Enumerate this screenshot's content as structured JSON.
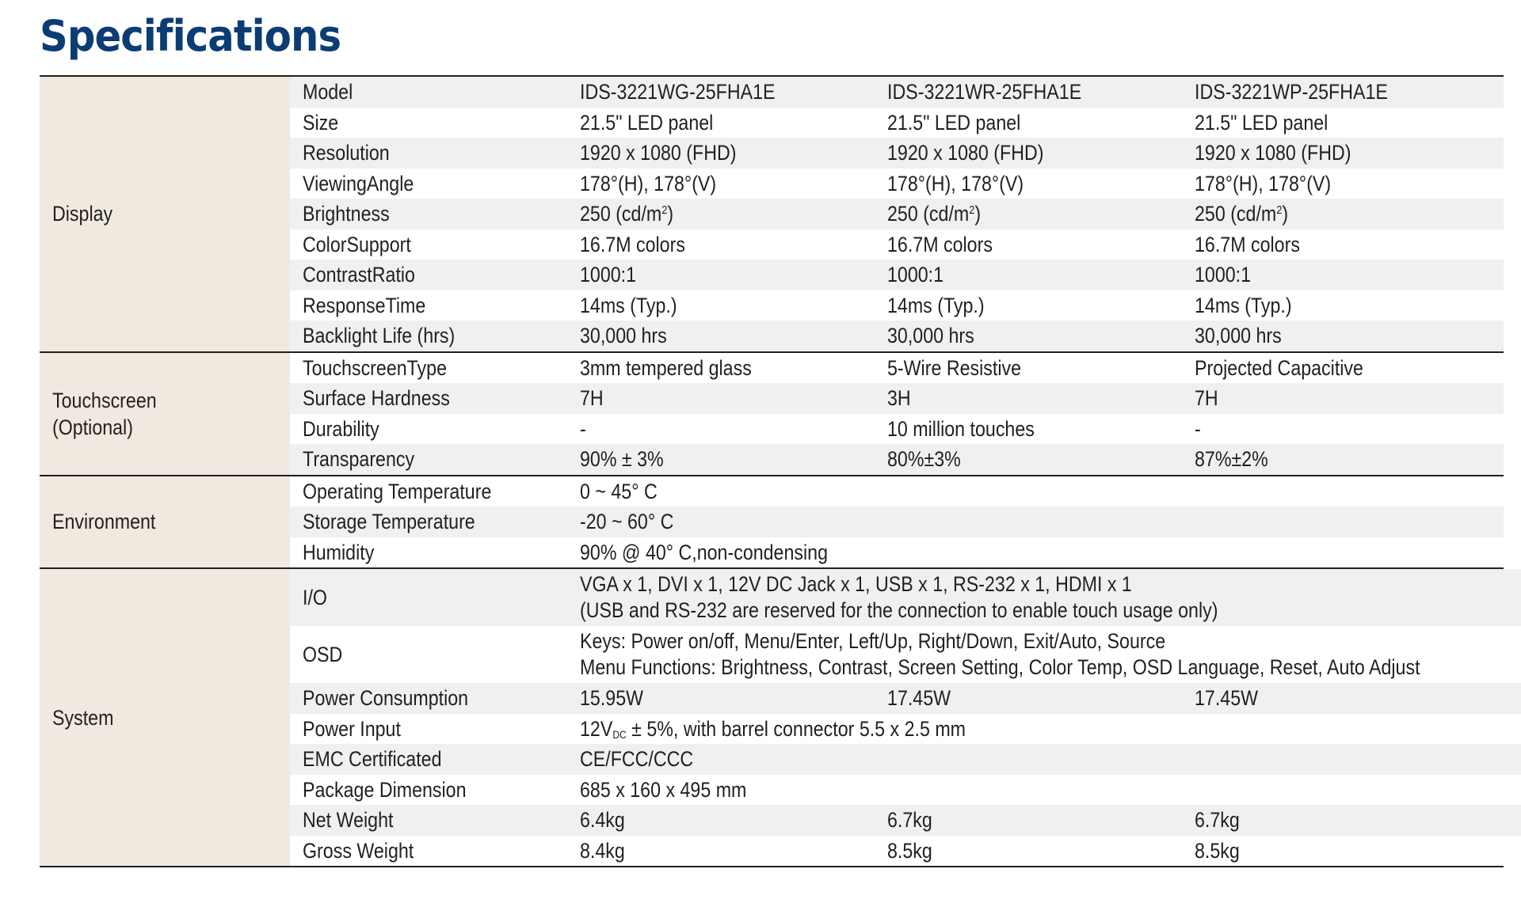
{
  "title": "Specifications",
  "groups": {
    "display": {
      "label": "Display",
      "rows": [
        {
          "label": "Model",
          "v1": "IDS-3221WG-25FHA1E",
          "v2": "IDS-3221WR-25FHA1E",
          "v3": "IDS-3221WP-25FHA1E"
        },
        {
          "label": "Size",
          "v1": "21.5\" LED panel",
          "v2": "21.5\" LED panel",
          "v3": "21.5\" LED panel"
        },
        {
          "label": "Resolution",
          "v1": "1920 x 1080 (FHD)",
          "v2": "1920 x 1080 (FHD)",
          "v3": "1920 x 1080 (FHD)"
        },
        {
          "label": "ViewingAngle",
          "v1": "178°(H), 178°(V)",
          "v2": "178°(H), 178°(V)",
          "v3": "178°(H), 178°(V)"
        },
        {
          "label": "Brightness",
          "v1": "250 (cd/m",
          "v2": "250 (cd/m",
          "v3": "250 (cd/m",
          "sup": "2",
          "close": ")"
        },
        {
          "label": "ColorSupport",
          "v1": "16.7M colors",
          "v2": "16.7M colors",
          "v3": "16.7M colors"
        },
        {
          "label": "ContrastRatio",
          "v1": "1000:1",
          "v2": "1000:1",
          "v3": "1000:1"
        },
        {
          "label": "ResponseTime",
          "v1": "14ms (Typ.)",
          "v2": "14ms (Typ.)",
          "v3": "14ms (Typ.)"
        },
        {
          "label": "Backlight Life (hrs)",
          "v1": "30,000 hrs",
          "v2": "30,000 hrs",
          "v3": "30,000 hrs"
        }
      ]
    },
    "touchscreen": {
      "label_line1": "Touchscreen",
      "label_line2": "(Optional)",
      "rows": [
        {
          "label": "TouchscreenType",
          "v1": "3mm tempered glass",
          "v2": "5-Wire Resistive",
          "v3": "Projected Capacitive"
        },
        {
          "label": "Surface Hardness",
          "v1": "7H",
          "v2": "3H",
          "v3": "7H"
        },
        {
          "label": "Durability",
          "v1": "-",
          "v2": "10 million touches",
          "v3": "-"
        },
        {
          "label": "Transparency",
          "v1": "90% ± 3%",
          "v2": "80%±3%",
          "v3": "87%±2%"
        }
      ]
    },
    "environment": {
      "label": "Environment",
      "rows": [
        {
          "label": "Operating Temperature",
          "value": "0 ~ 45° C"
        },
        {
          "label": "Storage Temperature",
          "value": "-20 ~  60° C"
        },
        {
          "label": "Humidity",
          "value": "90% @ 40° C,non-condensing"
        }
      ]
    },
    "system": {
      "label": "System",
      "io": {
        "label": "I/O",
        "line1": "VGA x 1, DVI x 1, 12V DC Jack x 1, USB x 1, RS-232 x 1, HDMI x 1",
        "line2": "(USB and RS-232 are reserved for the connection to enable touch usage only)"
      },
      "osd": {
        "label": "OSD",
        "line1": "Keys: Power on/off,  Menu/Enter, Left/Up, Right/Down, Exit/Auto, Source",
        "line2": "Menu Functions: Brightness, Contrast, Screen Setting, Color Temp, OSD Language, Reset, Auto Adjust"
      },
      "power_consumption": {
        "label": "Power Consumption",
        "v1": "15.95W",
        "v2": "17.45W",
        "v3": "17.45W"
      },
      "power_input": {
        "label": "Power Input",
        "pre": "12V",
        "sub": "DC",
        "post": " ± 5%, with barrel connector 5.5 x 2.5 mm"
      },
      "emc": {
        "label": "EMC Certificated",
        "value": "CE/FCC/CCC"
      },
      "package": {
        "label": "Package Dimension",
        "value": "685 x 160 x 495 mm"
      },
      "net_weight": {
        "label": "Net Weight",
        "v1": "6.4kg",
        "v2": "6.7kg",
        "v3": "6.7kg"
      },
      "gross_weight": {
        "label": "Gross Weight",
        "v1": "8.4kg",
        "v2": "8.5kg",
        "v3": "8.5kg"
      }
    }
  }
}
